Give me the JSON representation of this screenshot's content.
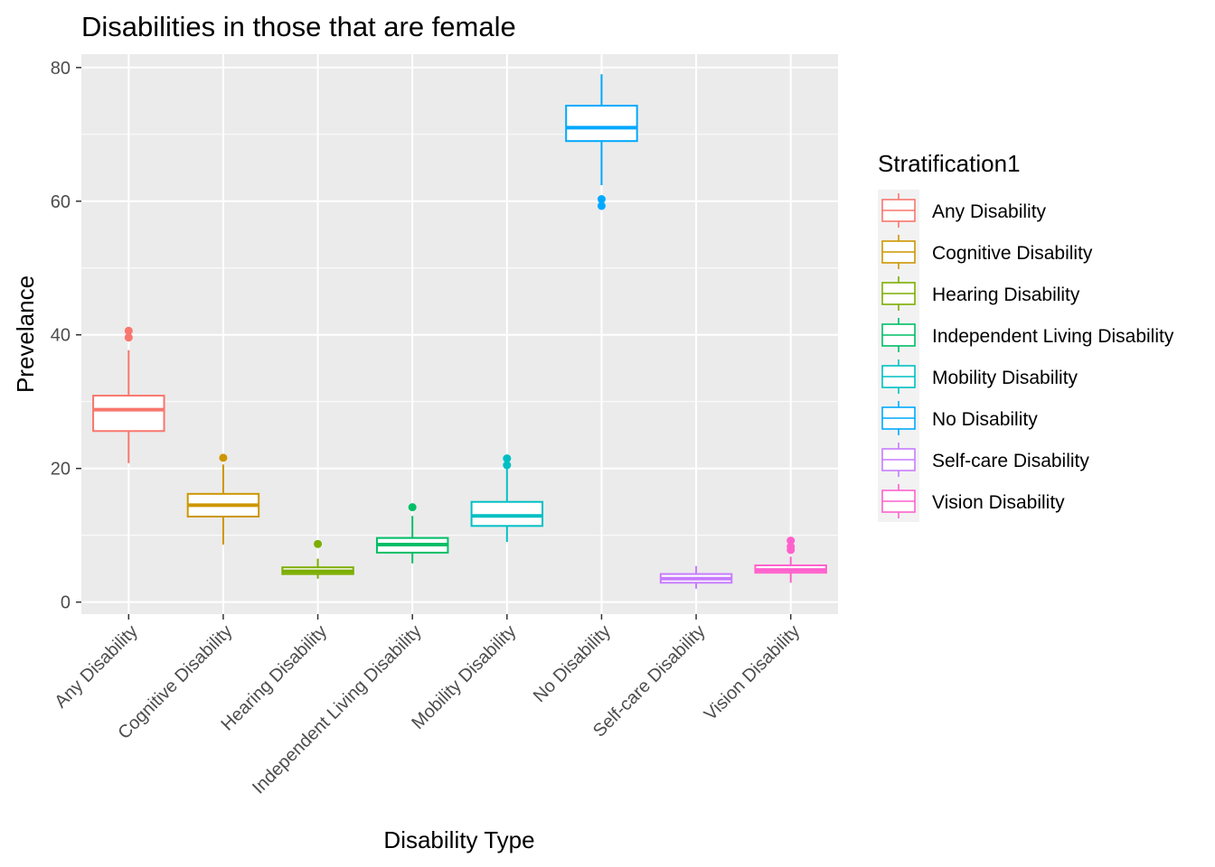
{
  "chart_data": {
    "type": "boxplot",
    "title": "Disabilities in those that are female",
    "xlabel": "Disability Type",
    "ylabel": "Prevelance",
    "ylim": [
      -1.8,
      82
    ],
    "yticks": [
      0,
      20,
      40,
      60,
      80
    ],
    "grid": true,
    "legend": {
      "title": "Stratification1",
      "position": "right"
    },
    "categories": [
      "Any Disability",
      "Cognitive Disability",
      "Hearing Disability",
      "Independent Living Disability",
      "Mobility Disability",
      "No Disability",
      "Self-care Disability",
      "Vision Disability"
    ],
    "series": [
      {
        "name": "Any Disability",
        "color": "#F8766D",
        "whisker_low": 20.8,
        "q1": 25.6,
        "median": 28.8,
        "q3": 30.9,
        "whisker_high": 37.7,
        "outliers": [
          39.6,
          40.6
        ]
      },
      {
        "name": "Cognitive Disability",
        "color": "#CD9600",
        "whisker_low": 8.6,
        "q1": 12.8,
        "median": 14.5,
        "q3": 16.2,
        "whisker_high": 20.6,
        "outliers": [
          21.6
        ]
      },
      {
        "name": "Hearing Disability",
        "color": "#7CAE00",
        "whisker_low": 3.5,
        "q1": 4.2,
        "median": 4.6,
        "q3": 5.2,
        "whisker_high": 6.5,
        "outliers": [
          8.7
        ]
      },
      {
        "name": "Independent Living Disability",
        "color": "#00BE67",
        "whisker_low": 5.8,
        "q1": 7.4,
        "median": 8.6,
        "q3": 9.6,
        "whisker_high": 12.9,
        "outliers": [
          14.2
        ]
      },
      {
        "name": "Mobility Disability",
        "color": "#00BFC4",
        "whisker_low": 9.0,
        "q1": 11.4,
        "median": 12.9,
        "q3": 15.0,
        "whisker_high": 19.9,
        "outliers": [
          20.5,
          21.5
        ]
      },
      {
        "name": "No Disability",
        "color": "#00A9FF",
        "whisker_low": 62.4,
        "q1": 69.0,
        "median": 71.0,
        "q3": 74.3,
        "whisker_high": 79.0,
        "outliers": [
          59.3,
          60.3
        ]
      },
      {
        "name": "Self-care Disability",
        "color": "#C77CFF",
        "whisker_low": 2.0,
        "q1": 2.9,
        "median": 3.5,
        "q3": 4.2,
        "whisker_high": 5.4,
        "outliers": []
      },
      {
        "name": "Vision Disability",
        "color": "#FF61CC",
        "whisker_low": 2.9,
        "q1": 4.4,
        "median": 4.8,
        "q3": 5.5,
        "whisker_high": 6.8,
        "outliers": [
          7.8,
          8.3,
          9.2
        ]
      }
    ]
  }
}
